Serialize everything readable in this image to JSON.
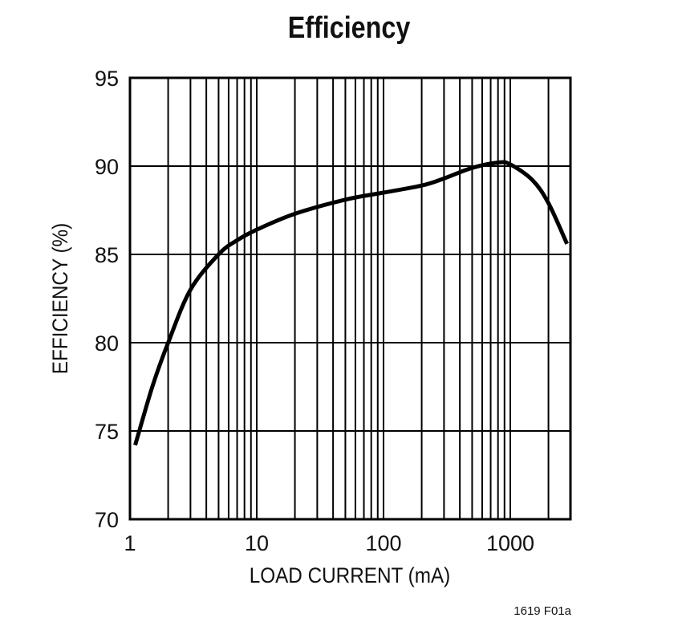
{
  "chart_data": {
    "type": "line",
    "title": "Efficiency",
    "xlabel": "LOAD CURRENT (mA)",
    "ylabel": "EFFICIENCY (%)",
    "xscale": "log",
    "xlim": [
      1,
      3000
    ],
    "ylim": [
      70,
      95
    ],
    "x_ticks": [
      "1",
      "10",
      "100",
      "1000"
    ],
    "y_ticks": [
      "70",
      "75",
      "80",
      "85",
      "90",
      "95"
    ],
    "grid": true,
    "legend": null,
    "series": [
      {
        "name": "Efficiency",
        "x": [
          1.1,
          1.5,
          2,
          3,
          5,
          7,
          10,
          20,
          50,
          100,
          200,
          300,
          500,
          800,
          1000,
          1500,
          2000,
          2800
        ],
        "y": [
          74.2,
          77.5,
          80.0,
          83.0,
          85.0,
          85.8,
          86.4,
          87.3,
          88.1,
          88.5,
          88.9,
          89.3,
          89.9,
          90.2,
          90.1,
          89.2,
          87.9,
          85.6
        ]
      }
    ],
    "annotation": "1619 F01a"
  }
}
